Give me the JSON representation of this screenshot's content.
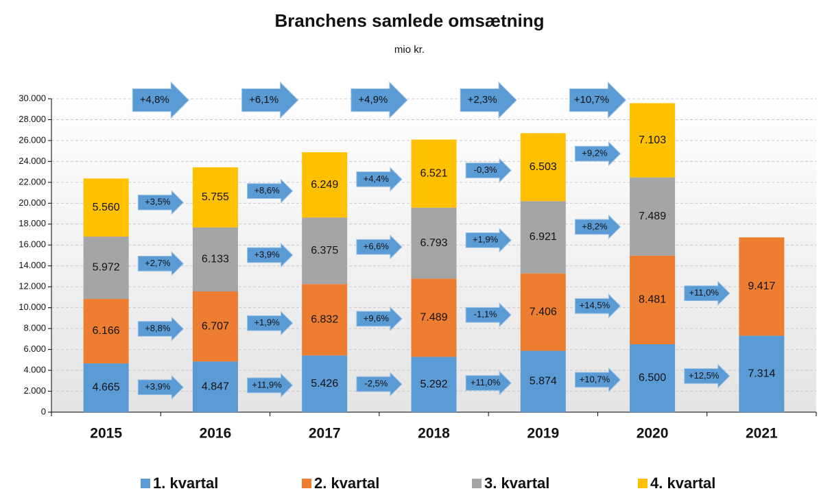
{
  "chart_data": {
    "type": "stacked-bar",
    "title": "Branchens samlede omsætning",
    "subtitle": "mio kr.",
    "categories": [
      "2015",
      "2016",
      "2017",
      "2018",
      "2019",
      "2020",
      "2021"
    ],
    "ylim": [
      0,
      30000
    ],
    "yticks": [
      0,
      {
        "value": 2000,
        "label": "2.000"
      },
      {
        "value": 4000,
        "label": "4.000"
      },
      {
        "value": 6000,
        "label": "6.000"
      },
      {
        "value": 8000,
        "label": "8.000"
      },
      {
        "value": 10000,
        "label": "10.000"
      },
      {
        "value": 12000,
        "label": "12.000"
      },
      {
        "value": 14000,
        "label": "14.000"
      },
      {
        "value": 16000,
        "label": "16.000"
      },
      {
        "value": 18000,
        "label": "18.000"
      },
      {
        "value": 20000,
        "label": "20.000"
      },
      {
        "value": 22000,
        "label": "22.000"
      },
      {
        "value": 24000,
        "label": "24.000"
      },
      {
        "value": 26000,
        "label": "26.000"
      },
      {
        "value": 28000,
        "label": "28.000"
      },
      {
        "value": 30000,
        "label": "30.000"
      }
    ],
    "grid": true,
    "legend": "bottom",
    "series": [
      {
        "name": "1. kvartal",
        "color": "#5b9bd5",
        "values": [
          4665,
          4847,
          5426,
          5292,
          5874,
          6500,
          7314
        ],
        "value_labels": [
          "4.665",
          "4.847",
          "5.426",
          "5.292",
          "5.874",
          "6.500",
          "7.314"
        ],
        "changes": [
          "+3,9%",
          "+11,9%",
          "-2,5%",
          "+11,0%",
          "+10,7%",
          "+12,5%"
        ]
      },
      {
        "name": "2. kvartal",
        "color": "#ed7d31",
        "values": [
          6166,
          6707,
          6832,
          7489,
          7406,
          8481,
          9417
        ],
        "value_labels": [
          "6.166",
          "6.707",
          "6.832",
          "7.489",
          "7.406",
          "8.481",
          "9.417"
        ],
        "changes": [
          "+8,8%",
          "+1,9%",
          "+9,6%",
          "-1,1%",
          "+14,5%",
          "+11,0%"
        ]
      },
      {
        "name": "3. kvartal",
        "color": "#a5a5a5",
        "values": [
          5972,
          6133,
          6375,
          6793,
          6921,
          7489,
          null
        ],
        "value_labels": [
          "5.972",
          "6.133",
          "6.375",
          "6.793",
          "6.921",
          "7.489",
          null
        ],
        "changes": [
          "+2,7%",
          "+3,9%",
          "+6,6%",
          "+1,9%",
          "+8,2%"
        ]
      },
      {
        "name": "4. kvartal",
        "color": "#ffc000",
        "values": [
          5560,
          5755,
          6249,
          6521,
          6503,
          7103,
          null
        ],
        "value_labels": [
          "5.560",
          "5.755",
          "6.249",
          "6.521",
          "6.503",
          "7.103",
          null
        ],
        "changes": [
          "+3,5%",
          "+8,6%",
          "+4,4%",
          "-0,3%",
          "+9,2%"
        ]
      }
    ],
    "total_changes": [
      "+4,8%",
      "+6,1%",
      "+4,9%",
      "+2,3%",
      "+10,7%"
    ]
  }
}
